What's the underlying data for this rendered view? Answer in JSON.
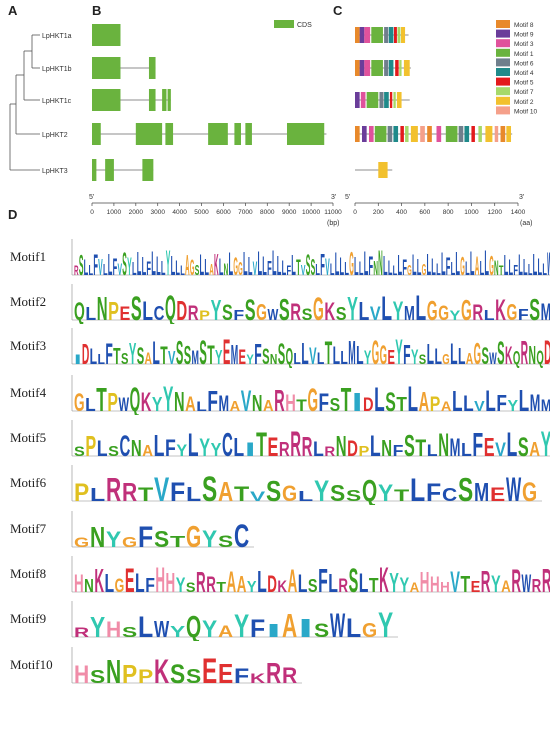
{
  "panels": {
    "a": "A",
    "b": "B",
    "c": "C",
    "d": "D"
  },
  "tree": {
    "genes": [
      "LpHKT1a",
      "LpHKT1b",
      "LpHKT1c",
      "LpHKT2",
      "LpHKT3"
    ]
  },
  "gene_structure": {
    "legend_label": "CDS",
    "legend_color": "#6ab33e",
    "axis_ticks": [
      "0",
      "1000",
      "2000",
      "3000",
      "4000",
      "5000",
      "6000",
      "7000",
      "8000",
      "9000",
      "10000",
      "11000"
    ],
    "axis_start": "5'",
    "axis_end": "3'",
    "axis_unit": "(bp)",
    "genes": [
      {
        "length": 1300,
        "cds": [
          [
            0,
            1300
          ]
        ]
      },
      {
        "length": 2900,
        "cds": [
          [
            0,
            1300
          ],
          [
            2600,
            2900
          ]
        ]
      },
      {
        "length": 3600,
        "cds": [
          [
            0,
            1300
          ],
          [
            2600,
            2900
          ],
          [
            3200,
            3400
          ],
          [
            3450,
            3600
          ]
        ]
      },
      {
        "length": 10700,
        "cds": [
          [
            0,
            400
          ],
          [
            2000,
            3200
          ],
          [
            3350,
            3700
          ],
          [
            5300,
            6200
          ],
          [
            6500,
            6800
          ],
          [
            7000,
            7300
          ],
          [
            8900,
            10600
          ]
        ]
      },
      {
        "length": 2800,
        "cds": [
          [
            0,
            200
          ],
          [
            600,
            1000
          ],
          [
            2300,
            2800
          ]
        ]
      }
    ]
  },
  "motif_structure": {
    "axis_ticks": [
      "0",
      "200",
      "400",
      "600",
      "800",
      "1000",
      "1200",
      "1400"
    ],
    "axis_start": "5'",
    "axis_end": "3'",
    "axis_unit": "(aa)",
    "legend": [
      {
        "name": "Motif 8",
        "color": "#e8892b"
      },
      {
        "name": "Motif 9",
        "color": "#6a3d9a"
      },
      {
        "name": "Motif 3",
        "color": "#e0529c"
      },
      {
        "name": "Motif 1",
        "color": "#6ab33e"
      },
      {
        "name": "Motif 6",
        "color": "#6f7f8c"
      },
      {
        "name": "Motif 4",
        "color": "#1f8a8a"
      },
      {
        "name": "Motif 5",
        "color": "#e31a1c"
      },
      {
        "name": "Motif 7",
        "color": "#a6d96a"
      },
      {
        "name": "Motif 2",
        "color": "#f2c12e"
      },
      {
        "name": "Motif 10",
        "color": "#f5a08a"
      }
    ],
    "proteins": [
      {
        "length": 460,
        "motifs": [
          [
            "8",
            0,
            40
          ],
          [
            "9",
            40,
            80
          ],
          [
            "3",
            80,
            130
          ],
          [
            "1",
            140,
            240
          ],
          [
            "6",
            250,
            285
          ],
          [
            "4",
            290,
            330
          ],
          [
            "5",
            335,
            360
          ],
          [
            "7",
            365,
            390
          ],
          [
            "2",
            395,
            430
          ]
        ]
      },
      {
        "length": 480,
        "motifs": [
          [
            "8",
            0,
            40
          ],
          [
            "9",
            40,
            80
          ],
          [
            "3",
            80,
            130
          ],
          [
            "1",
            140,
            240
          ],
          [
            "6",
            250,
            285
          ],
          [
            "4",
            290,
            330
          ],
          [
            "5",
            345,
            375
          ],
          [
            "7",
            380,
            400
          ],
          [
            "2",
            420,
            470
          ]
        ]
      },
      {
        "length": 470,
        "motifs": [
          [
            "9",
            0,
            40
          ],
          [
            "3",
            50,
            90
          ],
          [
            "1",
            100,
            200
          ],
          [
            "6",
            210,
            245
          ],
          [
            "4",
            250,
            290
          ],
          [
            "5",
            300,
            320
          ],
          [
            "7",
            330,
            350
          ],
          [
            "2",
            360,
            400
          ]
        ]
      },
      {
        "length": 1350,
        "motifs": [
          [
            "8",
            0,
            40
          ],
          [
            "9",
            60,
            100
          ],
          [
            "3",
            120,
            160
          ],
          [
            "1",
            170,
            270
          ],
          [
            "6",
            280,
            320
          ],
          [
            "4",
            330,
            370
          ],
          [
            "5",
            390,
            420
          ],
          [
            "7",
            430,
            460
          ],
          [
            "2",
            480,
            540
          ],
          [
            "10",
            560,
            600
          ],
          [
            "8",
            620,
            660
          ],
          [
            "3",
            700,
            740
          ],
          [
            "1",
            780,
            880
          ],
          [
            "6",
            890,
            930
          ],
          [
            "4",
            940,
            980
          ],
          [
            "5",
            1000,
            1030
          ],
          [
            "7",
            1060,
            1090
          ],
          [
            "2",
            1120,
            1180
          ],
          [
            "10",
            1200,
            1230
          ],
          [
            "8",
            1250,
            1290
          ],
          [
            "2",
            1300,
            1340
          ]
        ]
      },
      {
        "length": 320,
        "motifs": [
          [
            "2",
            200,
            280
          ]
        ]
      }
    ]
  },
  "logos": [
    {
      "label": "Motif1",
      "seq": "RSLLFVLLFVSYLLLFLLLYLLLAGSLLAKLNLGGLLVLLFLLLFLTVSSLFVLLLLGLLLFNNLLLLFGLLGLLLLFLLGLLALLGNTLLFLLLLLLW"
    },
    {
      "label": "Motif2",
      "seq": "QLNPESLCQDRPYSFSGWSRSGKSYLVLYMLGGYGRLKGFSM"
    },
    {
      "label": "Motif3",
      "seq": "IDLLFTSYSALTVSSMSTYEMEYFSNSQLLVLTLLMLYGGEYFYSLLGLLAGSWSKQRNQD"
    },
    {
      "label": "Motif4",
      "seq": "GLTPWQKYYNALFMAVNARHTGFSTIDLSTLAPALLVLFYLMM"
    },
    {
      "label": "Motif5",
      "seq": "SPLSCNALFYLYYCLITERRRLRNDPLNFSTLNMLFEVLSAY"
    },
    {
      "label": "Motif6",
      "seq": "PLRRTVFLSATVSGLYSSQYTLFCSMEWG"
    },
    {
      "label": "Motif7",
      "seq": "GNYGFSTGYSC"
    },
    {
      "label": "Motif8",
      "seq": "HNKLGELFHHYSRRTAAYLDKALSFLRSLTKYYAHHHVTERYARWRR"
    },
    {
      "label": "Motif9",
      "seq": "RYHSLWYQYAYFIAISWLGY"
    },
    {
      "label": "Motif10",
      "seq": "HSNPPKSSEEFKRR"
    }
  ]
}
